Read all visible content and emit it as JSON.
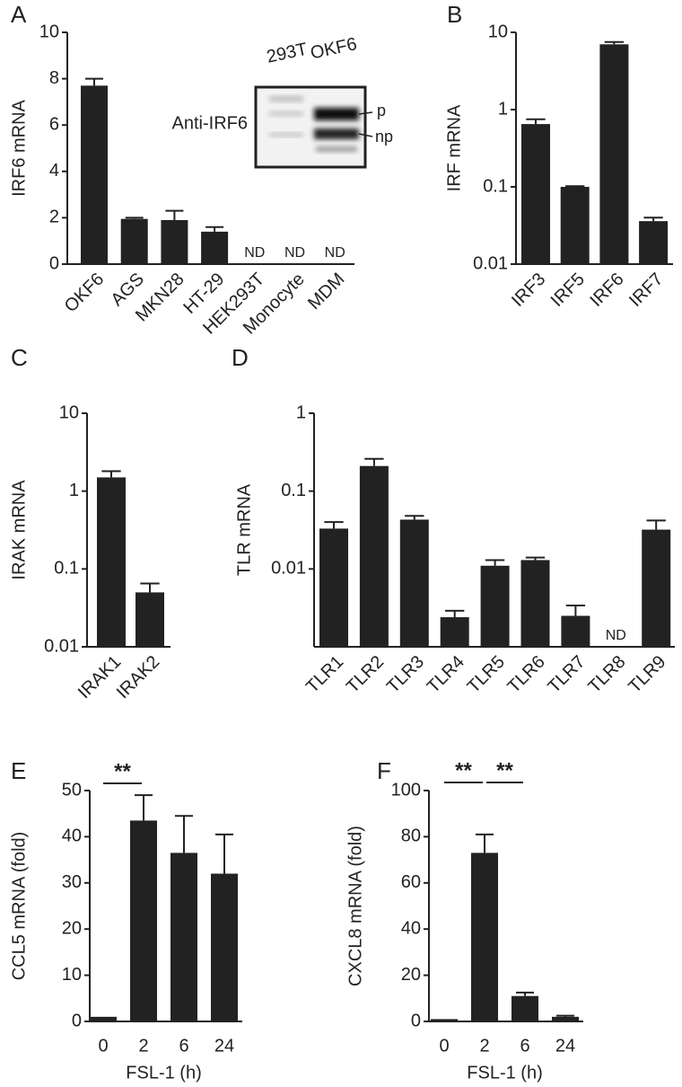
{
  "chart_data": [
    {
      "panel": "A",
      "type": "bar",
      "y_label": "IRF6 mRNA",
      "categories": [
        "OKF6",
        "AGS",
        "MKN28",
        "HT-29",
        "HEK293T",
        "Monocyte",
        "MDM"
      ],
      "values": [
        7.7,
        1.95,
        1.9,
        1.4,
        null,
        null,
        null
      ],
      "errors": [
        0.3,
        0.05,
        0.4,
        0.2,
        null,
        null,
        null
      ],
      "value_labels": [
        null,
        null,
        null,
        null,
        "ND",
        "ND",
        "ND"
      ],
      "color": "#222222",
      "ylim": [
        0,
        10
      ],
      "yticks": [
        0,
        2,
        4,
        6,
        8,
        10
      ],
      "inset": {
        "lanes": [
          "293T",
          "OKF6"
        ],
        "antibody": "Anti-IRF6",
        "bands": [
          "p",
          "np"
        ]
      }
    },
    {
      "panel": "B",
      "type": "bar",
      "y_label": "IRF mRNA",
      "log_scale": true,
      "categories": [
        "IRF3",
        "IRF5",
        "IRF6",
        "IRF7"
      ],
      "values": [
        0.65,
        0.1,
        7,
        0.036
      ],
      "errors": [
        0.1,
        0.002,
        0.5,
        0.004
      ],
      "color": "#222222",
      "ylim": [
        0.01,
        10
      ],
      "yticks": [
        0.01,
        0.1,
        1,
        10
      ]
    },
    {
      "panel": "C",
      "type": "bar",
      "y_label": "IRAK mRNA",
      "log_scale": true,
      "categories": [
        "IRAK1",
        "IRAK2"
      ],
      "values": [
        1.5,
        0.05
      ],
      "errors": [
        0.3,
        0.015
      ],
      "color": "#222222",
      "ylim": [
        0.01,
        10
      ],
      "yticks": [
        0.01,
        0.1,
        1,
        10
      ]
    },
    {
      "panel": "D",
      "type": "bar",
      "y_label": "TLR mRNA",
      "log_scale": true,
      "categories": [
        "TLR1",
        "TLR2",
        "TLR3",
        "TLR4",
        "TLR5",
        "TLR6",
        "TLR7",
        "TLR8",
        "TLR9"
      ],
      "values": [
        0.033,
        0.21,
        0.043,
        0.0024,
        0.011,
        0.013,
        0.0025,
        null,
        0.032
      ],
      "errors": [
        0.007,
        0.05,
        0.005,
        0.0005,
        0.002,
        0.001,
        0.0009,
        null,
        0.01
      ],
      "value_labels": [
        null,
        null,
        null,
        null,
        null,
        null,
        null,
        "ND",
        null
      ],
      "color": "#222222",
      "ylim": [
        0.001,
        1
      ],
      "yticks": [
        0.01,
        0.1,
        1
      ]
    },
    {
      "panel": "E",
      "type": "bar",
      "y_label": "CCL5 mRNA (fold)",
      "x_label": "FSL-1 (h)",
      "categories": [
        "0",
        "2",
        "6",
        "24"
      ],
      "values": [
        1,
        43.5,
        36.5,
        32
      ],
      "errors": [
        null,
        5.5,
        8,
        8.5
      ],
      "color": "#222222",
      "ylim": [
        0,
        50
      ],
      "yticks": [
        0,
        10,
        20,
        30,
        40,
        50
      ],
      "annotations": [
        {
          "text": "**",
          "between": [
            "0",
            "2"
          ]
        }
      ]
    },
    {
      "panel": "F",
      "type": "bar",
      "y_label": "CXCL8 mRNA (fold)",
      "x_label": "FSL-1 (h)",
      "categories": [
        "0",
        "2",
        "6",
        "24"
      ],
      "values": [
        1,
        73,
        11,
        2
      ],
      "errors": [
        null,
        8,
        1.5,
        0.5
      ],
      "color": "#222222",
      "ylim": [
        0,
        100
      ],
      "yticks": [
        0,
        20,
        40,
        60,
        80,
        100
      ],
      "annotations": [
        {
          "text": "**",
          "between": [
            "0",
            "2"
          ]
        },
        {
          "text": "**",
          "between": [
            "2",
            "6"
          ]
        }
      ]
    }
  ]
}
